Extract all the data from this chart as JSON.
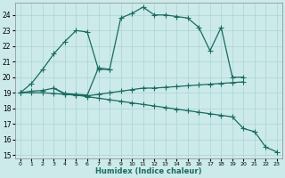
{
  "xlabel": "Humidex (Indice chaleur)",
  "bg_color": "#cceaea",
  "line_color": "#1a6b60",
  "grid_color": "#aad4d4",
  "lines": [
    {
      "x": [
        0,
        1,
        2,
        3,
        4,
        5,
        6,
        7,
        8,
        9,
        10,
        11,
        12,
        13,
        14,
        15,
        16,
        17,
        18,
        19,
        20
      ],
      "y": [
        19.0,
        19.6,
        20.5,
        21.5,
        22.3,
        23.0,
        22.9,
        20.5,
        20.5,
        23.8,
        24.1,
        24.5,
        24.0,
        24.0,
        23.9,
        23.8,
        23.2,
        21.7,
        23.2,
        20.0,
        20.0
      ]
    },
    {
      "x": [
        0,
        1,
        2,
        3,
        4,
        5,
        6,
        7,
        8,
        9,
        10,
        11,
        12,
        13,
        14,
        15,
        16,
        17,
        18,
        19,
        20
      ],
      "y": [
        19.0,
        19.1,
        19.15,
        19.3,
        18.9,
        18.85,
        18.8,
        18.9,
        19.0,
        19.1,
        19.2,
        19.3,
        19.3,
        19.35,
        19.4,
        19.45,
        19.5,
        19.55,
        19.6,
        19.65,
        19.7
      ]
    },
    {
      "x": [
        0,
        1,
        2,
        3,
        4,
        5,
        6,
        7,
        8,
        9,
        10,
        11,
        12,
        13,
        14,
        15,
        16,
        17,
        18,
        19,
        20,
        21,
        22,
        23
      ],
      "y": [
        19.0,
        19.0,
        19.0,
        18.95,
        18.9,
        18.85,
        18.75,
        18.65,
        18.55,
        18.45,
        18.35,
        18.25,
        18.15,
        18.05,
        17.95,
        17.85,
        17.75,
        17.65,
        17.55,
        17.45,
        16.7,
        16.5,
        15.5,
        15.2
      ]
    },
    {
      "x": [
        0,
        1,
        2,
        3,
        4,
        5,
        6,
        7,
        8,
        9,
        10,
        11,
        12,
        13,
        14,
        15,
        16,
        17,
        18,
        19,
        20,
        21,
        22,
        23
      ],
      "y": [
        null,
        null,
        null,
        19.3,
        18.95,
        18.9,
        18.85,
        20.6,
        20.5,
        null,
        null,
        null,
        null,
        null,
        null,
        null,
        null,
        null,
        null,
        null,
        null,
        null,
        null,
        null
      ]
    }
  ],
  "xlim": [
    -0.5,
    23.5
  ],
  "ylim": [
    14.8,
    24.8
  ],
  "yticks": [
    15,
    16,
    17,
    18,
    19,
    20,
    21,
    22,
    23,
    24
  ],
  "xticks": [
    0,
    1,
    2,
    3,
    4,
    5,
    6,
    7,
    8,
    9,
    10,
    11,
    12,
    13,
    14,
    15,
    16,
    17,
    18,
    19,
    20,
    21,
    22,
    23
  ]
}
